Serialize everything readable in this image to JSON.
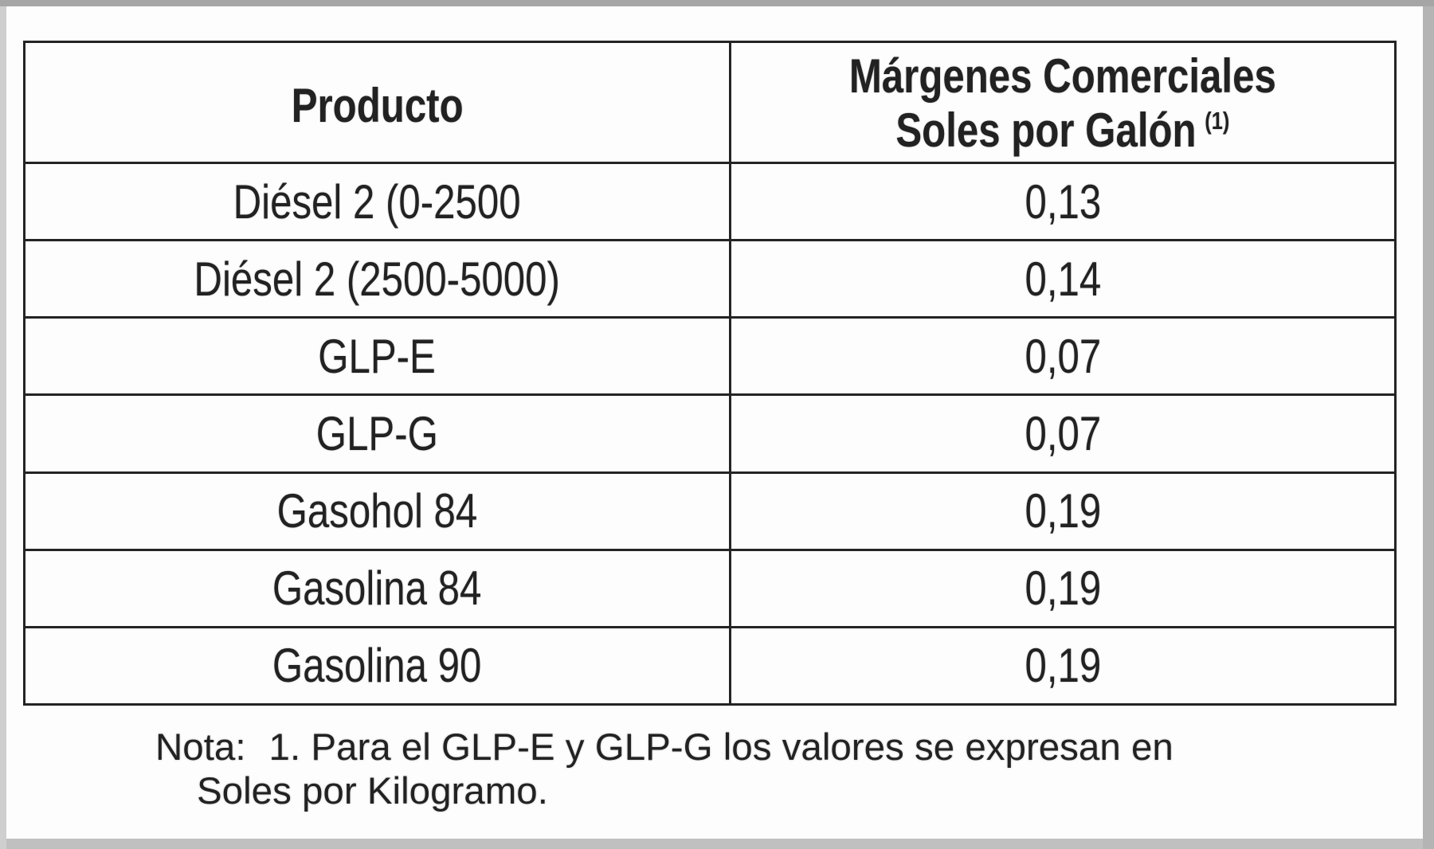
{
  "table": {
    "header": {
      "product_label": "Producto",
      "margin_label_line1": "Márgenes Comerciales",
      "margin_label_line2": "Soles por Galón",
      "margin_label_superscript": "(1)"
    },
    "rows": [
      {
        "producto": "Diésel 2 (0-2500",
        "margen": "0,13"
      },
      {
        "producto": "Diésel 2 (2500-5000)",
        "margen": "0,14"
      },
      {
        "producto": "GLP-E",
        "margen": "0,07"
      },
      {
        "producto": "GLP-G",
        "margen": "0,07"
      },
      {
        "producto": "Gasohol 84",
        "margen": "0,19"
      },
      {
        "producto": "Gasolina 84",
        "margen": "0,19"
      },
      {
        "producto": "Gasolina 90",
        "margen": "0,19"
      }
    ]
  },
  "note": {
    "label": "Nota:",
    "line1": "1. Para el GLP-E y GLP-G los valores se expresan en",
    "line2": "Soles por Kilogramo."
  }
}
